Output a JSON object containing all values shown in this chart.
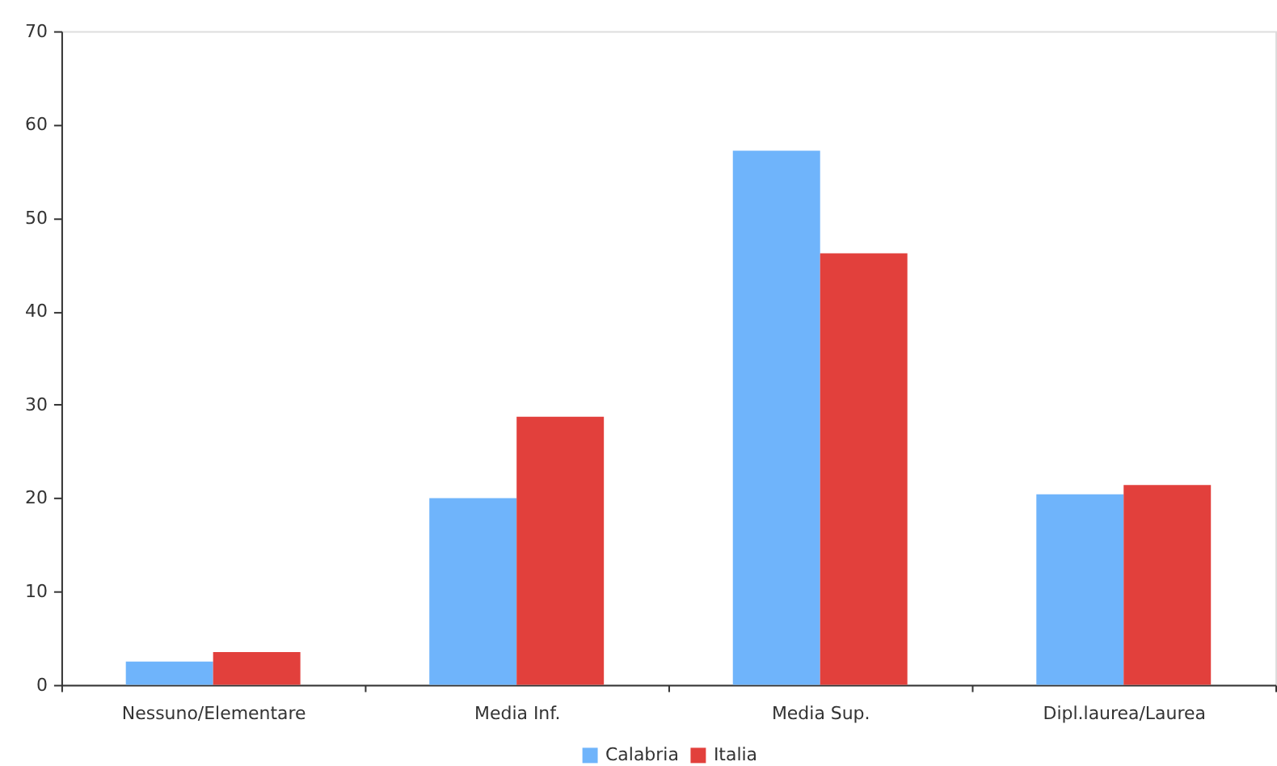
{
  "chart_data": {
    "type": "bar",
    "categories": [
      "Nessuno/Elementare",
      "Media Inf.",
      "Media Sup.",
      "Dipl.laurea/Laurea"
    ],
    "series": [
      {
        "name": "Calabria",
        "color": "#6fb4fb",
        "values": [
          2.5,
          20.0,
          57.2,
          20.4
        ]
      },
      {
        "name": "Italia",
        "color": "#e2403c",
        "values": [
          3.5,
          28.7,
          46.2,
          21.4
        ]
      }
    ],
    "ylim": [
      0,
      70
    ],
    "yticks": [
      0,
      10,
      20,
      30,
      40,
      50,
      60,
      70
    ],
    "grid": false,
    "legend": "bottom"
  }
}
